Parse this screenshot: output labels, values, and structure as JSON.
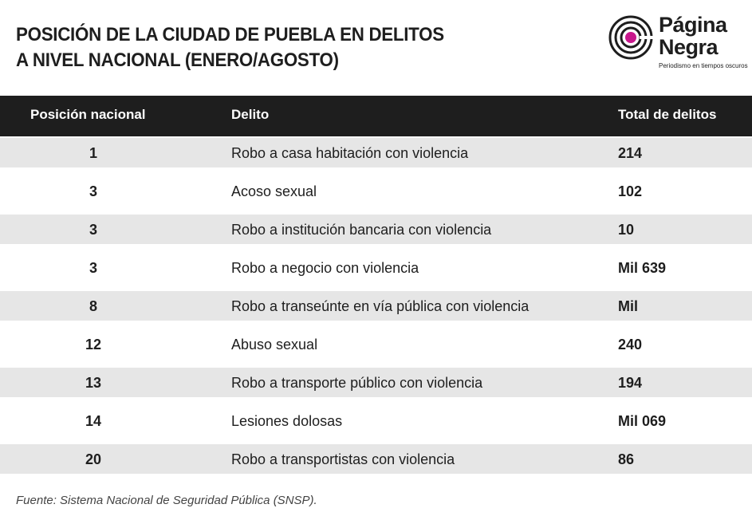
{
  "header": {
    "title": [
      "POSICIÓN DE LA CIUDAD DE PUEBLA EN DELITOS",
      "A NIVEL NACIONAL (ENERO/AGOSTO)"
    ],
    "logo": {
      "name": [
        "Página",
        "Negra"
      ],
      "tagline": "Periodismo en tiempos oscuros"
    }
  },
  "table": {
    "columns": [
      "Posición nacional",
      "Delito",
      "Total de delitos"
    ],
    "rows": [
      [
        1,
        "Robo a casa habitación con violencia",
        214
      ],
      [
        3,
        "Acoso sexual",
        102
      ],
      [
        3,
        "Robo a institución bancaria con violencia",
        10
      ],
      [
        3,
        "Robo a negocio con violencia",
        "Mil 639"
      ],
      [
        8,
        "Robo a transeúnte en vía pública con violencia",
        "Mil"
      ],
      [
        12,
        "Abuso sexual",
        240
      ],
      [
        13,
        "Robo a transporte público con violencia",
        194
      ],
      [
        14,
        "Lesiones dolosas",
        "Mil 069"
      ],
      [
        20,
        "Robo a transportistas con violencia",
        86
      ]
    ]
  },
  "footer": {
    "source": "Fuente: Sistema Nacional de Seguridad Pública (SNSP)."
  }
}
